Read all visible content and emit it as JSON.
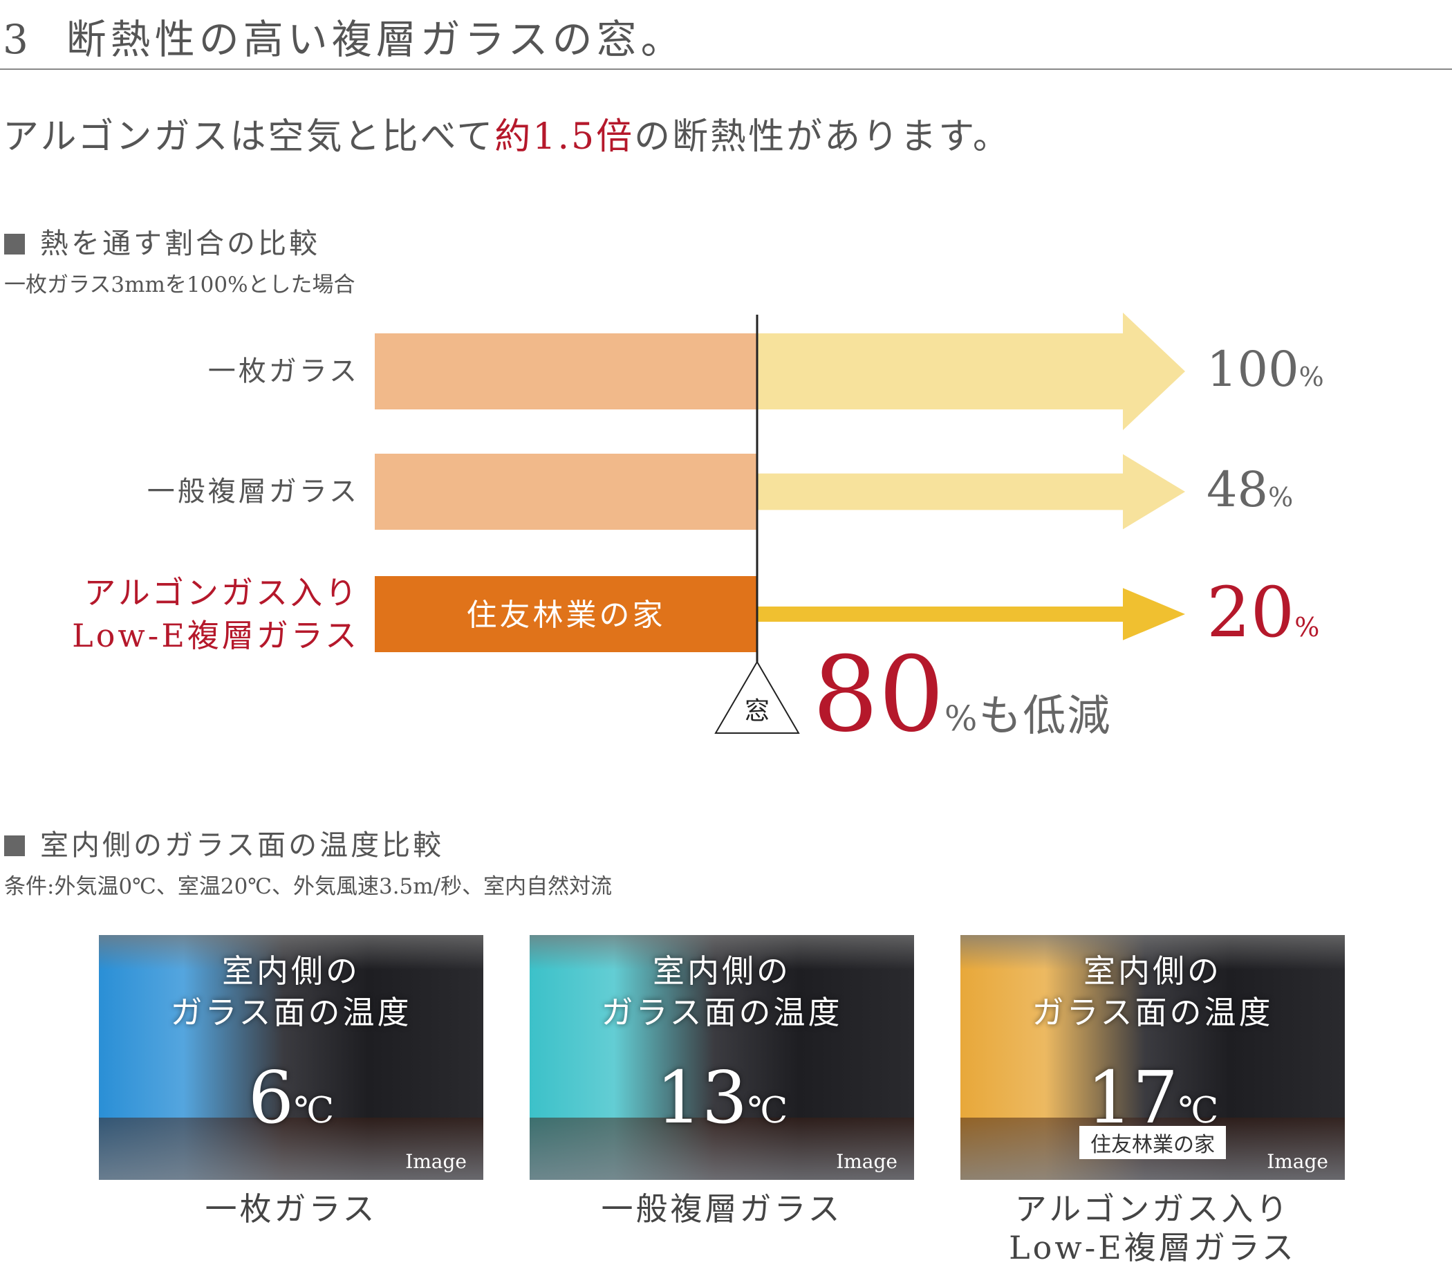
{
  "header": {
    "number": "3",
    "title": "断熱性の高い複層ガラスの窓。"
  },
  "lead": {
    "before": "アルゴンガスは空気と比べて",
    "highlight": "約1.5倍",
    "after": "の断熱性があります。"
  },
  "chart_data": {
    "type": "arrow-bar",
    "title": "熱を通す割合の比較",
    "subtitle": "一枚ガラス3mmを100%とした場合",
    "categories": [
      "一枚ガラス",
      "一般複層ガラス",
      "アルゴンガス入り\nLow-E複層ガラス"
    ],
    "values": [
      100,
      48,
      20
    ],
    "unit": "%",
    "bar_colors": [
      "#f1b98a",
      "#f1b98a",
      "#e0731a"
    ],
    "arrow_colors": [
      "#f7e29c",
      "#f7e29c",
      "#f0c030"
    ],
    "highlight_color": "#b5182b",
    "highlight_index": 2,
    "inner_label": "住友林業の家",
    "marker": "窓",
    "reduction": {
      "value": 80,
      "unit": "%",
      "text": "も低減"
    }
  },
  "temperature": {
    "title": "室内側のガラス面の温度比較",
    "note": "条件:外気温0℃、室温20℃、外気風速3.5m/秒、室内自然対流",
    "cards": [
      {
        "heading": "室内側の\nガラス面の温度",
        "value": 6,
        "unit": "℃",
        "image_label": "Image",
        "caption": "一枚ガラス"
      },
      {
        "heading": "室内側の\nガラス面の温度",
        "value": 13,
        "unit": "℃",
        "image_label": "Image",
        "caption": "一般複層ガラス"
      },
      {
        "heading": "室内側の\nガラス面の温度",
        "value": 17,
        "unit": "℃",
        "badge": "住友林業の家",
        "image_label": "Image",
        "caption": "アルゴンガス入り\nLow-E複層ガラス"
      }
    ]
  }
}
